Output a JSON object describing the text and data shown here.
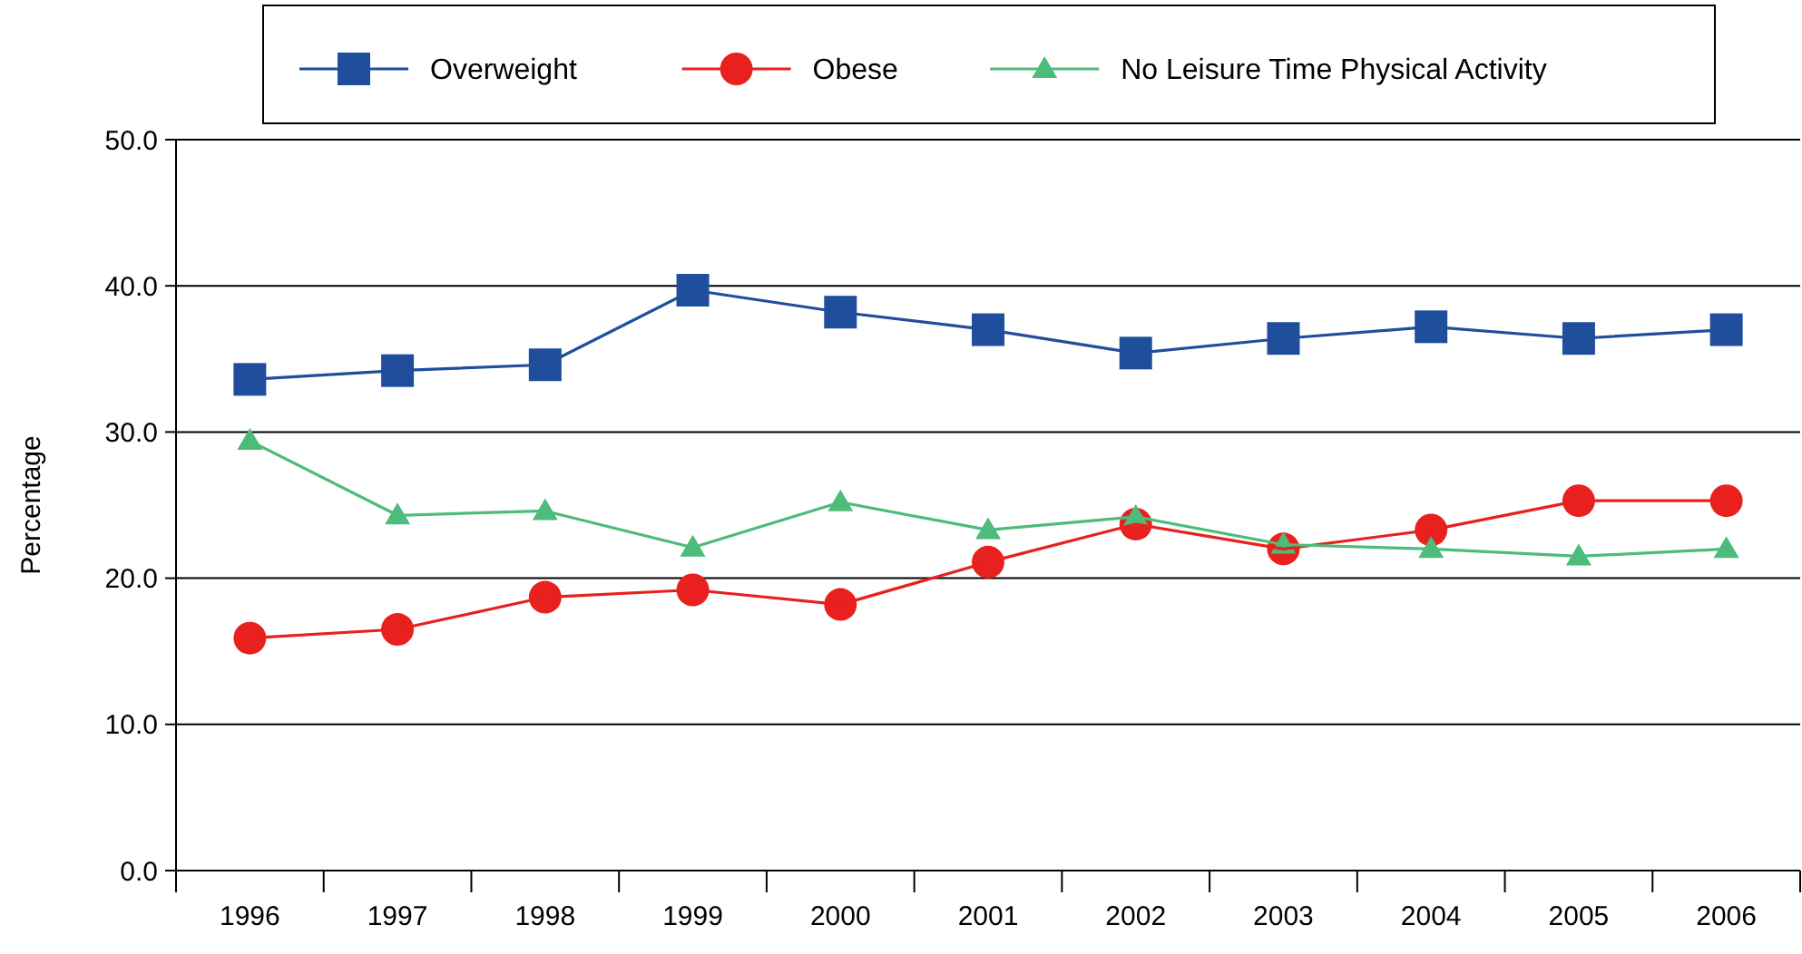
{
  "chart_data": {
    "type": "line",
    "ylabel": "Percentage",
    "categories": [
      "1996",
      "1997",
      "1998",
      "1999",
      "2000",
      "2001",
      "2002",
      "2003",
      "2004",
      "2005",
      "2006"
    ],
    "series": [
      {
        "name": "Overweight",
        "color": "#1f4e9c",
        "marker": "square",
        "values": [
          33.6,
          34.2,
          34.6,
          39.7,
          38.2,
          37.0,
          35.4,
          36.4,
          37.2,
          36.4,
          37.0
        ]
      },
      {
        "name": "Obese",
        "color": "#e8201e",
        "marker": "circle",
        "values": [
          15.9,
          16.5,
          18.7,
          19.2,
          18.2,
          21.1,
          23.7,
          22.0,
          23.3,
          25.3,
          25.3
        ]
      },
      {
        "name": "No Leisure Time Physical Activity",
        "color": "#4dbb7a",
        "marker": "triangle",
        "values": [
          29.4,
          24.3,
          24.6,
          22.1,
          25.2,
          23.3,
          24.2,
          22.3,
          22.0,
          21.5,
          22.0
        ]
      }
    ],
    "ylim": [
      0,
      50
    ],
    "yticks": [
      {
        "value": 0,
        "label": "0.0"
      },
      {
        "value": 10,
        "label": "10.0"
      },
      {
        "value": 20,
        "label": "20.0"
      },
      {
        "value": 30,
        "label": "30.0"
      },
      {
        "value": 40,
        "label": "40.0"
      },
      {
        "value": 50,
        "label": "50.0"
      }
    ],
    "grid": "y",
    "legend": "top"
  }
}
